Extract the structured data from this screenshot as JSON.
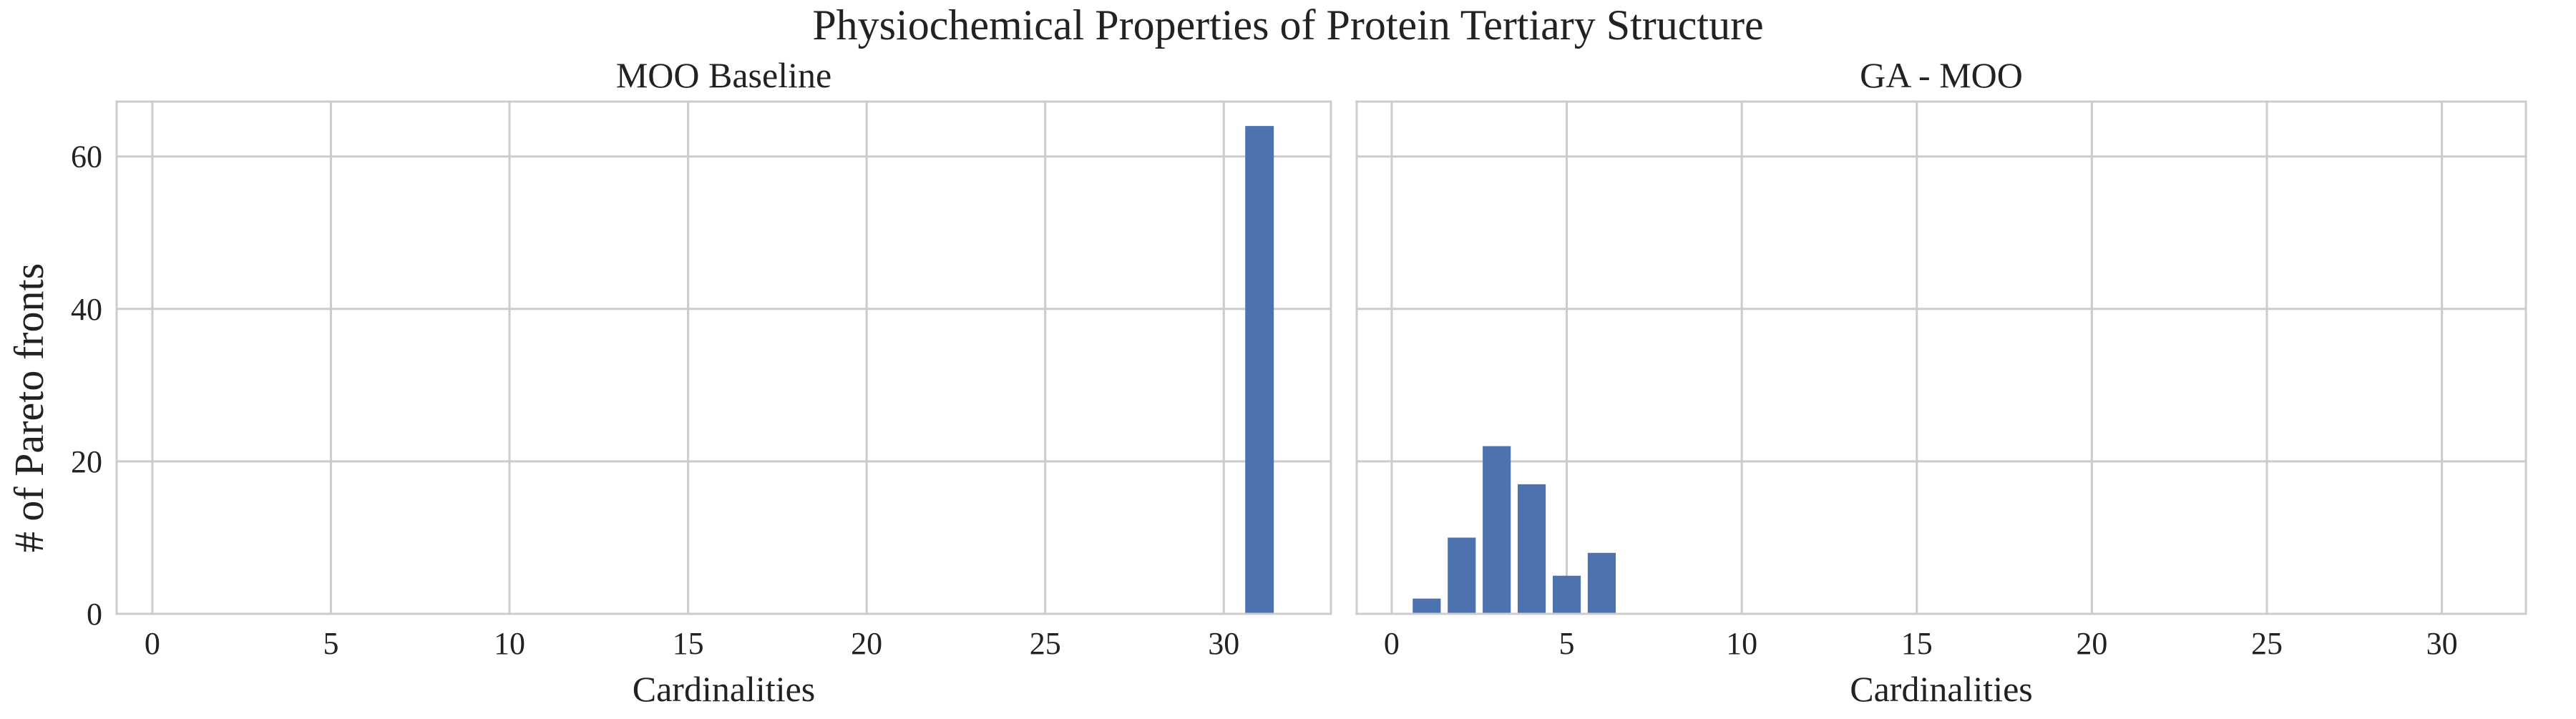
{
  "chart_data": {
    "title": "Physiochemical Properties of Protein Tertiary Structure",
    "ylabel": "# of Pareto fronts",
    "bar_color": "#4c72b0",
    "grid": true,
    "sharey": true,
    "ylim": [
      0,
      67.2
    ],
    "yticks": [
      0,
      20,
      40,
      60
    ],
    "panels": [
      {
        "type": "bar",
        "title": "MOO Baseline",
        "xlabel": "Cardinalities",
        "xlim": [
          -1,
          33
        ],
        "xticks": [
          0,
          5,
          10,
          15,
          20,
          25,
          30
        ],
        "x": [
          31
        ],
        "values": [
          64
        ]
      },
      {
        "type": "bar",
        "title": "GA - MOO",
        "xlabel": "Cardinalities",
        "xlim": [
          -1,
          32.4
        ],
        "xticks": [
          0,
          5,
          10,
          15,
          20,
          25,
          30
        ],
        "x": [
          1,
          2,
          3,
          4,
          5,
          6
        ],
        "values": [
          2,
          10,
          22,
          17,
          5,
          8
        ]
      }
    ]
  }
}
